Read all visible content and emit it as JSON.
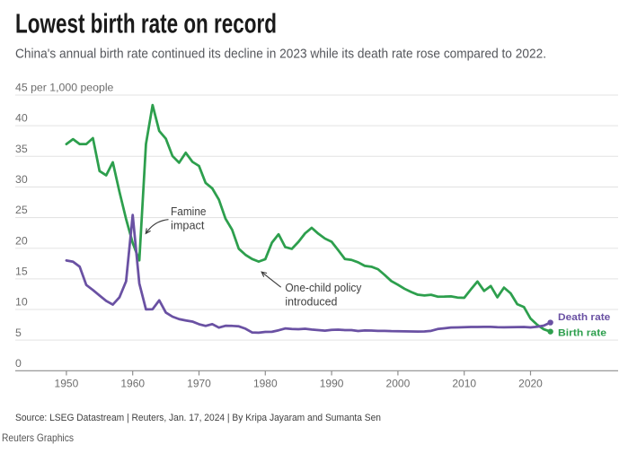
{
  "chart_data": {
    "type": "line",
    "title": "Lowest birth rate on record",
    "subtitle": "China's annual birth rate continued its decline in 2023 while its death rate rose compared to 2022.",
    "unit_label": "45 per 1,000 people",
    "ylabel": "per 1,000 people",
    "xlabel": "",
    "ylim": [
      0,
      45
    ],
    "xlim": [
      1950,
      2023
    ],
    "y_ticks": [
      0,
      5,
      10,
      15,
      20,
      25,
      30,
      35,
      40,
      45
    ],
    "x_ticks": [
      1950,
      1960,
      1970,
      1980,
      1990,
      2000,
      2010,
      2020
    ],
    "grid": true,
    "legend_position": "right-end-of-lines",
    "x": [
      1950,
      1951,
      1952,
      1953,
      1954,
      1955,
      1956,
      1957,
      1958,
      1959,
      1960,
      1961,
      1962,
      1963,
      1964,
      1965,
      1966,
      1967,
      1968,
      1969,
      1970,
      1971,
      1972,
      1973,
      1974,
      1975,
      1976,
      1977,
      1978,
      1979,
      1980,
      1981,
      1982,
      1983,
      1984,
      1985,
      1986,
      1987,
      1988,
      1989,
      1990,
      1991,
      1992,
      1993,
      1994,
      1995,
      1996,
      1997,
      1998,
      1999,
      2000,
      2001,
      2002,
      2003,
      2004,
      2005,
      2006,
      2007,
      2008,
      2009,
      2010,
      2011,
      2012,
      2013,
      2014,
      2015,
      2016,
      2017,
      2018,
      2019,
      2020,
      2021,
      2022,
      2023
    ],
    "series": [
      {
        "name": "Birth rate",
        "color": "#2d9f4d",
        "values": [
          37.0,
          37.8,
          37.0,
          37.0,
          37.97,
          32.6,
          31.9,
          34.03,
          29.22,
          24.78,
          20.86,
          18.02,
          37.01,
          43.37,
          39.14,
          37.88,
          35.05,
          33.96,
          35.59,
          34.11,
          33.43,
          30.65,
          29.77,
          27.93,
          24.82,
          23.01,
          19.91,
          18.93,
          18.25,
          17.82,
          18.21,
          20.91,
          22.28,
          20.19,
          19.9,
          21.04,
          22.43,
          23.33,
          22.37,
          21.58,
          21.06,
          19.68,
          18.24,
          18.09,
          17.7,
          17.12,
          16.98,
          16.57,
          15.64,
          14.64,
          14.03,
          13.38,
          12.86,
          12.41,
          12.29,
          12.4,
          12.09,
          12.1,
          12.14,
          11.95,
          11.9,
          13.27,
          14.57,
          13.03,
          13.83,
          11.99,
          13.57,
          12.64,
          10.86,
          10.41,
          8.52,
          7.52,
          6.77,
          6.39
        ]
      },
      {
        "name": "Death rate",
        "color": "#6a51a3",
        "values": [
          18.0,
          17.8,
          17.0,
          14.0,
          13.18,
          12.28,
          11.4,
          10.8,
          11.98,
          14.59,
          25.43,
          14.24,
          10.02,
          10.04,
          11.5,
          9.5,
          8.83,
          8.43,
          8.21,
          8.03,
          7.6,
          7.32,
          7.61,
          7.04,
          7.34,
          7.32,
          7.25,
          6.87,
          6.25,
          6.21,
          6.34,
          6.36,
          6.6,
          6.9,
          6.82,
          6.78,
          6.86,
          6.72,
          6.64,
          6.54,
          6.67,
          6.7,
          6.64,
          6.64,
          6.49,
          6.57,
          6.56,
          6.51,
          6.5,
          6.46,
          6.45,
          6.43,
          6.41,
          6.4,
          6.42,
          6.51,
          6.81,
          6.93,
          7.06,
          7.08,
          7.11,
          7.14,
          7.15,
          7.16,
          7.16,
          7.11,
          7.09,
          7.11,
          7.13,
          7.14,
          7.07,
          7.18,
          7.37,
          7.87
        ]
      }
    ],
    "annotations": [
      {
        "id": "famine",
        "text": "Famine impact",
        "lines": [
          "Famine",
          "impact"
        ],
        "points_to_year": 1961
      },
      {
        "id": "one_child",
        "text": "One-child policy introduced",
        "lines": [
          "One-child policy",
          "introduced"
        ],
        "points_to_year": 1979
      }
    ],
    "colors": {
      "grid": "#e3e3e3",
      "axis": "#8e8e8e",
      "axis_label": "#6d6d6d",
      "annotation": "#3f3f3f"
    }
  },
  "footer": {
    "source": "Source: LSEG Datastream | Reuters, Jan. 17, 2024 | By Kripa Jayaram and Sumanta Sen",
    "brand": "Reuters Graphics"
  }
}
